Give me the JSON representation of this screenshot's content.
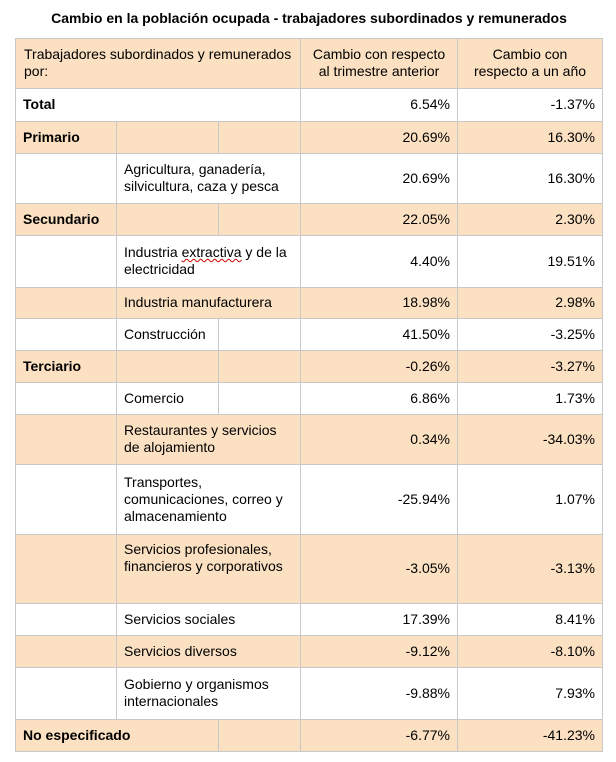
{
  "title": "Cambio en la población ocupada - trabajadores subordinados y remunerados",
  "header": {
    "col0": "Trabajadores subordinados y remunerados por:",
    "col1": "Cambio con respecto al trimestre anterior",
    "col2": "Cambio con respecto a un año"
  },
  "rows": {
    "total": {
      "label": "Total",
      "q": "6.54%",
      "y": "-1.37%"
    },
    "primario": {
      "label": "Primario",
      "q": "20.69%",
      "y": "16.30%"
    },
    "agricultura": {
      "label": "Agricultura, ganadería, silvicultura, caza y pesca",
      "q": "20.69%",
      "y": "16.30%"
    },
    "secundario": {
      "label": "Secundario",
      "q": "22.05%",
      "y": "2.30%"
    },
    "extractiva_a": {
      "label": "Industria "
    },
    "extractiva_b": {
      "label": "extractiva"
    },
    "extractiva_c": {
      "label": " y de la electricidad",
      "q": "4.40%",
      "y": "19.51%"
    },
    "manufacturera": {
      "label": "Industria manufacturera",
      "q": "18.98%",
      "y": "2.98%"
    },
    "construccion": {
      "label": "Construcción",
      "q": "41.50%",
      "y": "-3.25%"
    },
    "terciario": {
      "label": "Terciario",
      "q": "-0.26%",
      "y": "-3.27%"
    },
    "comercio": {
      "label": "Comercio",
      "q": "6.86%",
      "y": "1.73%"
    },
    "restaurantes": {
      "label": "Restaurantes y servicios de alojamiento",
      "q": "0.34%",
      "y": "-34.03%"
    },
    "transportes": {
      "label": "Transportes, comunicaciones, correo y almacenamiento",
      "q": "-25.94%",
      "y": "1.07%"
    },
    "profesionales": {
      "label": "Servicios profesionales, financieros y corporativos",
      "q": "-3.05%",
      "y": "-3.13%"
    },
    "sociales": {
      "label": "Servicios sociales",
      "q": "17.39%",
      "y": "8.41%"
    },
    "diversos": {
      "label": "Servicios diversos",
      "q": "-9.12%",
      "y": "-8.10%"
    },
    "gobierno": {
      "label": "Gobierno y organismos internacionales",
      "q": "-9.88%",
      "y": "7.93%"
    },
    "no_especificado": {
      "label": "No especificado",
      "q": "-6.77%",
      "y": "-41.23%"
    }
  },
  "colors": {
    "row_shade": "#fbe0c2",
    "border": "#c8c8c8",
    "spell_underline": "#d00000"
  }
}
